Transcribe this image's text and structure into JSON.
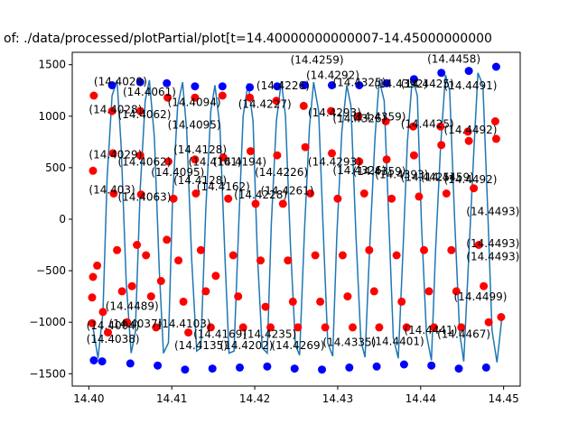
{
  "chart_data": {
    "type": "line",
    "title": "of: ./data/processed/plotPartial/plot[t=14.40000000000007-14.45000000000",
    "xlabel": "",
    "ylabel": "",
    "xlim": [
      14.398,
      14.452
    ],
    "ylim": [
      -1620,
      1620
    ],
    "xticks": [
      14.4,
      14.41,
      14.42,
      14.43,
      14.44,
      14.45
    ],
    "xtick_labels": [
      "14.40",
      "14.41",
      "14.42",
      "14.43",
      "14.44",
      "14.45"
    ],
    "yticks": [
      -1500,
      -1000,
      -500,
      0,
      500,
      1000,
      1500
    ],
    "ytick_labels": [
      "−1500",
      "−1000",
      "−500",
      "0",
      "500",
      "1000",
      "1500"
    ],
    "grid": false,
    "line_color": "#1f77b4",
    "peak_color": "#0000ff",
    "point_color": "#ff0000",
    "series": [
      {
        "role": "signal",
        "x": [
          14.4005,
          14.4011,
          14.4017,
          14.4022,
          14.4028,
          14.4034,
          14.4039,
          14.4045,
          14.4051,
          14.4056,
          14.4062,
          14.4068,
          14.4073,
          14.4079,
          14.4085,
          14.409,
          14.4096,
          14.4101,
          14.4107,
          14.4113,
          14.4118,
          14.4124,
          14.413,
          14.4135,
          14.4141,
          14.4147,
          14.4152,
          14.4158,
          14.4164,
          14.4169,
          14.4175,
          14.4181,
          14.4186,
          14.4192,
          14.4198,
          14.4203,
          14.4209,
          14.4215,
          14.422,
          14.4226,
          14.4232,
          14.4237,
          14.4243,
          14.4249,
          14.4254,
          14.426,
          14.4266,
          14.4271,
          14.4277,
          14.4283,
          14.4288,
          14.4294,
          14.4299,
          14.4305,
          14.4311,
          14.4316,
          14.4322,
          14.4328,
          14.4333,
          14.4339,
          14.4345,
          14.435,
          14.4356,
          14.4362,
          14.4367,
          14.4373,
          14.4379,
          14.4384,
          14.439,
          14.4396,
          14.4401,
          14.4407,
          14.4413,
          14.4418,
          14.4424,
          14.443,
          14.4435,
          14.4441,
          14.4447,
          14.4452,
          14.4458,
          14.4464,
          14.4469,
          14.4475,
          14.4481,
          14.4486,
          14.4492,
          14.4498
        ],
        "y": [
          -1050,
          -1350,
          -900,
          400,
          1200,
          1350,
          700,
          -600,
          -1300,
          -1100,
          300,
          1150,
          1350,
          800,
          -500,
          -1300,
          -1200,
          200,
          1100,
          1330,
          850,
          -400,
          -1280,
          -1250,
          100,
          1050,
          1300,
          900,
          -350,
          -1300,
          -1280,
          0,
          1000,
          1320,
          950,
          -300,
          -1250,
          -1300,
          -50,
          950,
          1340,
          1000,
          -250,
          -1220,
          -1320,
          -100,
          900,
          1330,
          1050,
          -200,
          -1200,
          -1330,
          -150,
          850,
          1300,
          1100,
          -150,
          -1180,
          -1340,
          -200,
          800,
          1350,
          1150,
          -100,
          -1150,
          -1350,
          -250,
          750,
          1380,
          1200,
          -50,
          -1120,
          -1370,
          -300,
          700,
          1400,
          1250,
          0,
          -1100,
          -1380,
          -350,
          650,
          1420,
          1300,
          50,
          -1080,
          -1390,
          -950
        ]
      },
      {
        "role": "peaks",
        "x": [
          14.4006,
          14.4028,
          14.4062,
          14.4094,
          14.4128,
          14.4161,
          14.4194,
          14.4227,
          14.426,
          14.4293,
          14.4326,
          14.4359,
          14.4392,
          14.4425,
          14.4458,
          14.4491,
          14.4016,
          14.405,
          14.4083,
          14.4116,
          14.4149,
          14.4182,
          14.4215,
          14.4248,
          14.4281,
          14.4314,
          14.4347,
          14.438,
          14.4413,
          14.4446,
          14.4479
        ],
        "y": [
          -1370,
          1300,
          1330,
          1320,
          1290,
          1290,
          1280,
          1290,
          1300,
          1300,
          1300,
          1320,
          1360,
          1420,
          1440,
          1480,
          -1380,
          -1400,
          -1420,
          -1460,
          -1450,
          -1440,
          -1430,
          -1450,
          -1460,
          -1440,
          -1430,
          -1410,
          -1420,
          -1450,
          -1440
        ]
      }
    ],
    "red_points": {
      "x": [
        14.4004,
        14.4004,
        14.4005,
        14.4005,
        14.4006,
        14.401,
        14.4017,
        14.4023,
        14.4028,
        14.4029,
        14.403,
        14.4034,
        14.404,
        14.4046,
        14.4052,
        14.4058,
        14.4062,
        14.4062,
        14.4063,
        14.4069,
        14.4075,
        14.4081,
        14.4087,
        14.4094,
        14.4095,
        14.4096,
        14.4102,
        14.4108,
        14.4114,
        14.412,
        14.4128,
        14.4128,
        14.4129,
        14.4135,
        14.4141,
        14.4147,
        14.4153,
        14.4161,
        14.4162,
        14.4168,
        14.4174,
        14.418,
        14.4186,
        14.4194,
        14.4195,
        14.4201,
        14.4207,
        14.4213,
        14.4219,
        14.4226,
        14.4227,
        14.4234,
        14.424,
        14.4246,
        14.4252,
        14.4259,
        14.4261,
        14.4267,
        14.4273,
        14.4279,
        14.4285,
        14.4292,
        14.4293,
        14.43,
        14.4306,
        14.4312,
        14.4318,
        14.4325,
        14.4326,
        14.4332,
        14.4338,
        14.4344,
        14.435,
        14.4358,
        14.4359,
        14.4365,
        14.4371,
        14.4377,
        14.4383,
        14.4391,
        14.4392,
        14.4398,
        14.4404,
        14.441,
        14.4416,
        14.4424,
        14.4425,
        14.4431,
        14.4437,
        14.4443,
        14.4449,
        14.4457,
        14.4458,
        14.4464,
        14.447,
        14.4476,
        14.4482,
        14.449,
        14.4491,
        14.4497
      ],
      "y": [
        -1010,
        -760,
        -560,
        470,
        1200,
        -450,
        -900,
        -1100,
        1050,
        640,
        250,
        -300,
        -700,
        -1000,
        -650,
        -250,
        1050,
        620,
        240,
        -350,
        -750,
        -1050,
        -600,
        -200,
        1180,
        560,
        200,
        -400,
        -800,
        -1100,
        1180,
        580,
        250,
        -300,
        -700,
        -1050,
        -550,
        1200,
        600,
        200,
        -350,
        -750,
        -1050,
        1180,
        660,
        150,
        -400,
        -850,
        -1050,
        1150,
        620,
        150,
        -400,
        -800,
        -1050,
        1100,
        700,
        250,
        -350,
        -800,
        -1050,
        1050,
        640,
        200,
        -350,
        -750,
        -1050,
        1000,
        560,
        250,
        -300,
        -700,
        -1050,
        950,
        580,
        200,
        -350,
        -800,
        -1050,
        900,
        620,
        220,
        -300,
        -700,
        -1050,
        900,
        720,
        250,
        -300,
        -700,
        -1050,
        850,
        760,
        300,
        -250,
        -650,
        -1000,
        950,
        780,
        -950
      ]
    },
    "annotations": [
      {
        "text": "(14.4029)",
        "x": 14.4006,
        "y": 1300
      },
      {
        "text": "(14.4061)",
        "x": 14.4041,
        "y": 1200
      },
      {
        "text": "(14.4028)",
        "x": 14.4,
        "y": 1030
      },
      {
        "text": "(14.4062)",
        "x": 14.4035,
        "y": 980
      },
      {
        "text": "(14.4029)",
        "x": 14.4,
        "y": 590
      },
      {
        "text": "(14.4062)",
        "x": 14.4035,
        "y": 520
      },
      {
        "text": "(14.4095)",
        "x": 14.4075,
        "y": 420
      },
      {
        "text": "(14.403)",
        "x": 14.4,
        "y": 250
      },
      {
        "text": "(14.4063)",
        "x": 14.4035,
        "y": 180
      },
      {
        "text": "(14.4094)",
        "x": 14.4095,
        "y": 1100
      },
      {
        "text": "(14.4095)",
        "x": 14.4095,
        "y": 880
      },
      {
        "text": "(14.4128)",
        "x": 14.4102,
        "y": 640
      },
      {
        "text": "(14.4161)",
        "x": 14.412,
        "y": 520
      },
      {
        "text": "(14.4128)",
        "x": 14.4102,
        "y": 340
      },
      {
        "text": "(14.4162)",
        "x": 14.413,
        "y": 280
      },
      {
        "text": "(14.4194)",
        "x": 14.415,
        "y": 520
      },
      {
        "text": "(14.4227)",
        "x": 14.418,
        "y": 1080
      },
      {
        "text": "(14.4228)",
        "x": 14.4175,
        "y": 200
      },
      {
        "text": "(14.4261)",
        "x": 14.4207,
        "y": 240
      },
      {
        "text": "(14.4226)",
        "x": 14.42,
        "y": 420
      },
      {
        "text": "(14.4226)",
        "x": 14.4202,
        "y": 1260
      },
      {
        "text": "(14.4259)",
        "x": 14.4243,
        "y": 1510
      },
      {
        "text": "(14.4292)",
        "x": 14.4262,
        "y": 1360
      },
      {
        "text": "(14.4293)",
        "x": 14.4264,
        "y": 1000
      },
      {
        "text": "(14.4326)",
        "x": 14.4294,
        "y": 940
      },
      {
        "text": "(14.4359)",
        "x": 14.4318,
        "y": 960
      },
      {
        "text": "(14.4293)",
        "x": 14.4264,
        "y": 520
      },
      {
        "text": "(14.4326)",
        "x": 14.4294,
        "y": 440
      },
      {
        "text": "(14.4359)",
        "x": 14.4318,
        "y": 430
      },
      {
        "text": "(14.4393)",
        "x": 14.4345,
        "y": 400
      },
      {
        "text": "(14.4325)",
        "x": 14.4294,
        "y": 1290
      },
      {
        "text": "(14.4392)",
        "x": 14.4344,
        "y": 1280
      },
      {
        "text": "(14.4425)",
        "x": 14.4376,
        "y": 1280
      },
      {
        "text": "(14.4458)",
        "x": 14.4408,
        "y": 1520
      },
      {
        "text": "(14.4491)",
        "x": 14.4428,
        "y": 1260
      },
      {
        "text": "(14.4425)",
        "x": 14.4376,
        "y": 890
      },
      {
        "text": "(14.4492)",
        "x": 14.4428,
        "y": 830
      },
      {
        "text": "(14.4425)",
        "x": 14.4376,
        "y": 370
      },
      {
        "text": "(14.4459)",
        "x": 14.44,
        "y": 370
      },
      {
        "text": "(14.4492)",
        "x": 14.4428,
        "y": 350
      },
      {
        "text": "(14.4467)",
        "x": 14.442,
        "y": -1150
      },
      {
        "text": "(14.4499)",
        "x": 14.444,
        "y": -790
      },
      {
        "text": "(14.4004)",
        "x": 14.3997,
        "y": -1070
      },
      {
        "text": "(14.4038)",
        "x": 14.3997,
        "y": -1200
      },
      {
        "text": "(14.4037)",
        "x": 14.4024,
        "y": -1050
      },
      {
        "text": "(14.4103)",
        "x": 14.4083,
        "y": -1050
      },
      {
        "text": "(14.4135)",
        "x": 14.4103,
        "y": -1260
      },
      {
        "text": "(14.4169)",
        "x": 14.4126,
        "y": -1150
      },
      {
        "text": "(14.4202)",
        "x": 14.4158,
        "y": -1260
      },
      {
        "text": "(14.4235)",
        "x": 14.4186,
        "y": -1150
      },
      {
        "text": "(14.4269)",
        "x": 14.422,
        "y": -1260
      },
      {
        "text": "(14.4335)",
        "x": 14.4282,
        "y": -1230
      },
      {
        "text": "(14.4401)",
        "x": 14.434,
        "y": -1220
      },
      {
        "text": "(14.4441)",
        "x": 14.438,
        "y": -1110
      },
      {
        "text": "(14.4489)",
        "x": 14.402,
        "y": -880
      },
      {
        "text": "(14.4493)",
        "x": 14.4455,
        "y": 40
      },
      {
        "text": "(14.4493)",
        "x": 14.4455,
        "y": -270
      },
      {
        "text": "(14.4493)",
        "x": 14.4455,
        "y": -400
      }
    ]
  }
}
